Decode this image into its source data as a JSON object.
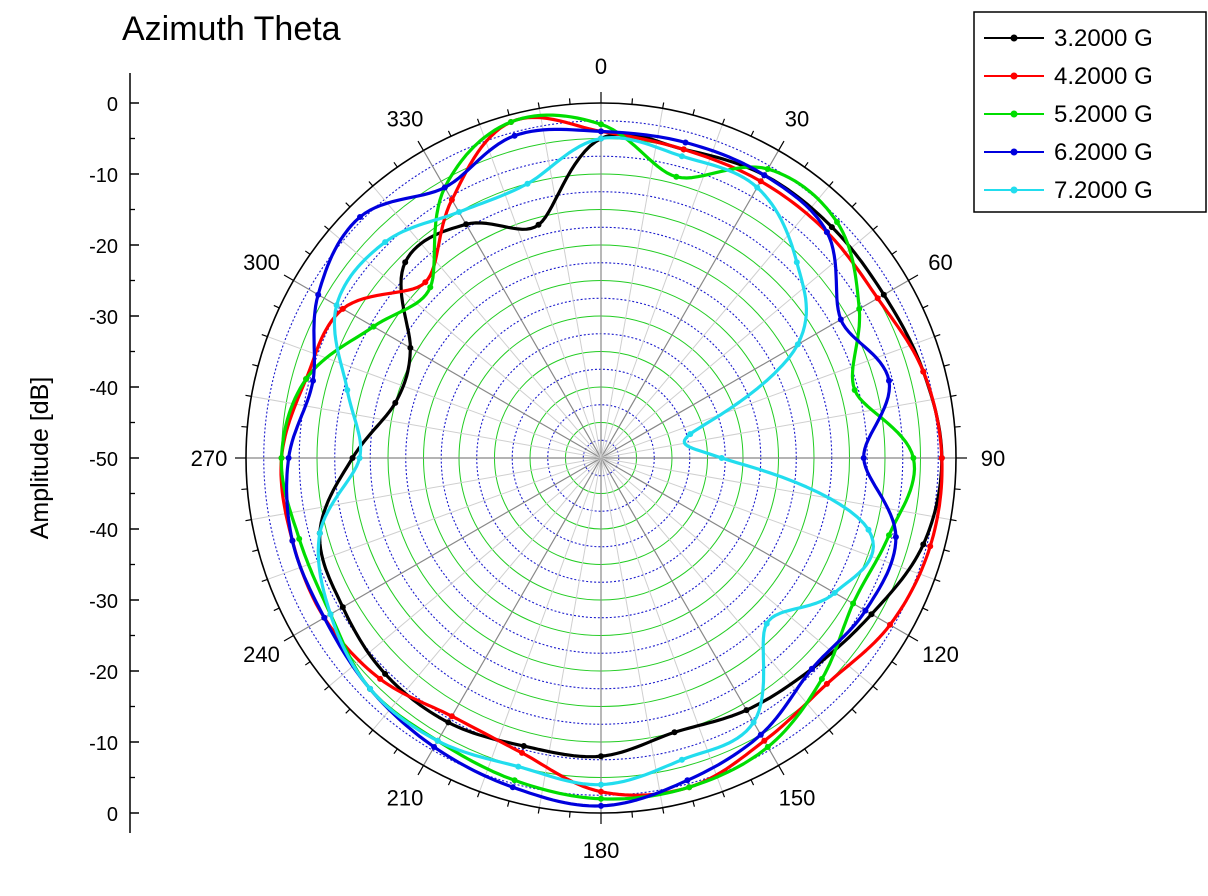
{
  "chart_data": {
    "type": "line",
    "subtype": "polar",
    "title": "Azimuth Theta",
    "ylabel": "Amplitude [dB]",
    "radial_axis": {
      "range": [
        -50,
        0
      ],
      "ticks": [
        0,
        -10,
        -20,
        -30,
        -40,
        -50
      ],
      "tick_labels_upper": [
        "0",
        "-10",
        "-20",
        "-30",
        "-40",
        "-50"
      ],
      "tick_labels_lower": [
        "-40",
        "-30",
        "-20",
        "-10",
        "0"
      ]
    },
    "angular_axis": {
      "ticks": [
        0,
        30,
        60,
        90,
        120,
        150,
        180,
        210,
        240,
        270,
        300,
        330
      ],
      "labels": [
        "0",
        "30",
        "60",
        "90",
        "120",
        "150",
        "180",
        "210",
        "240",
        "270",
        "300",
        "330"
      ],
      "direction": "clockwise",
      "zero_at": "top"
    },
    "grid": true,
    "legend_position": "top-right",
    "series": [
      {
        "name": "3.2000 G",
        "color": "#000000",
        "marker": "square",
        "angles": [
          0,
          15,
          30,
          45,
          60,
          75,
          90,
          105,
          120,
          135,
          150,
          165,
          180,
          195,
          210,
          225,
          240,
          255,
          270,
          285,
          300,
          315,
          330,
          345
        ],
        "values": [
          -5,
          -5,
          -4,
          -4,
          -4,
          -3,
          -2,
          -3,
          -6,
          -8,
          -9,
          -10,
          -8,
          -8,
          -7,
          -7,
          -8,
          -9,
          -15,
          -20,
          -19,
          -11,
          -12,
          -16
        ]
      },
      {
        "name": "4.2000 G",
        "color": "#ff0000",
        "marker": "circle",
        "angles": [
          0,
          15,
          30,
          45,
          60,
          75,
          90,
          105,
          120,
          135,
          150,
          165,
          180,
          195,
          210,
          225,
          240,
          255,
          270,
          285,
          300,
          315,
          330,
          345
        ],
        "values": [
          -4,
          -5,
          -5,
          -5,
          -5,
          -3,
          -2,
          -2,
          -3,
          -5,
          -4,
          -2,
          -3,
          -7,
          -8,
          -6,
          -5,
          -5,
          -5,
          -7,
          -8,
          -15,
          -8,
          -1
        ]
      },
      {
        "name": "5.2000 G",
        "color": "#00dd00",
        "marker": "triangle-up",
        "angles": [
          0,
          15,
          30,
          45,
          60,
          75,
          90,
          105,
          120,
          135,
          150,
          165,
          180,
          195,
          210,
          225,
          240,
          255,
          270,
          285,
          300,
          315,
          330,
          345
        ],
        "values": [
          -3,
          -9,
          -3,
          -3,
          -8,
          -13,
          -6,
          -8,
          -9,
          -6,
          -3,
          -2,
          -2,
          -3,
          -4,
          -4,
          -6,
          -6,
          -5,
          -7,
          -13,
          -16,
          -6,
          -1
        ]
      },
      {
        "name": "6.2000 G",
        "color": "#0000dd",
        "marker": "triangle-down",
        "angles": [
          0,
          15,
          30,
          45,
          60,
          75,
          90,
          105,
          120,
          135,
          150,
          165,
          180,
          195,
          210,
          225,
          240,
          255,
          270,
          285,
          300,
          315,
          330,
          345
        ],
        "values": [
          -4,
          -4,
          -4,
          -5,
          -11,
          -8,
          -13,
          -7,
          -7,
          -8,
          -5,
          -3,
          -1,
          -2,
          -3,
          -4,
          -5,
          -5,
          -6,
          -8,
          -4,
          -2,
          -6,
          -3
        ]
      },
      {
        "name": "7.2000 G",
        "color": "#22ddee",
        "marker": "diamond",
        "angles": [
          0,
          15,
          30,
          45,
          60,
          75,
          90,
          105,
          120,
          135,
          150,
          165,
          180,
          195,
          210,
          225,
          240,
          255,
          270,
          285,
          300,
          315,
          330,
          345
        ],
        "values": [
          -5,
          -6,
          -6,
          -11,
          -18,
          -37,
          -33,
          -11,
          -12,
          -17,
          -7,
          -6,
          -4,
          -5,
          -4,
          -4,
          -6,
          -9,
          -16,
          -13,
          -7,
          -7,
          -10,
          -10
        ]
      }
    ]
  }
}
